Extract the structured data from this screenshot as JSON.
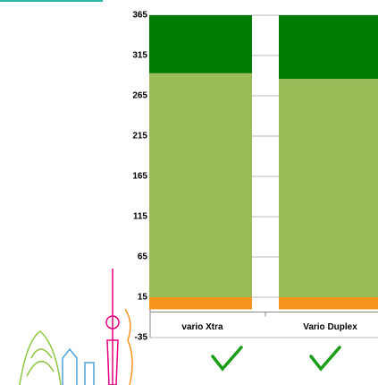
{
  "chart_data": {
    "type": "stacked-bar",
    "categories": [
      "vario Xtra",
      "Vario Duplex"
    ],
    "series": [
      {
        "color": "#f7941d",
        "values": [
          15,
          15
        ]
      },
      {
        "color": "#9bbb59",
        "values": [
          278,
          271
        ]
      },
      {
        "color": "#007a00",
        "values": [
          72,
          79
        ]
      }
    ],
    "ylim": [
      -35,
      365
    ],
    "yticks": [
      -35,
      15,
      65,
      115,
      165,
      215,
      265,
      315,
      365
    ],
    "grid": true
  }
}
